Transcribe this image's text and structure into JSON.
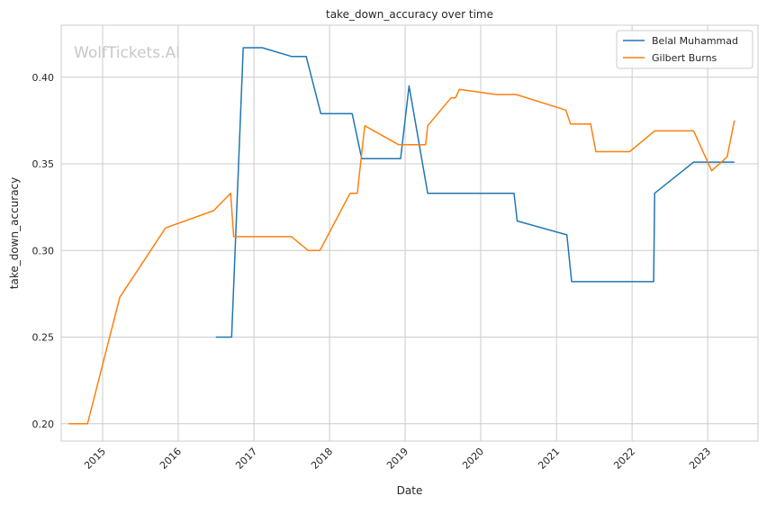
{
  "chart_data": {
    "type": "line",
    "title": "take_down_accuracy over time",
    "xlabel": "Date",
    "ylabel": "take_down_accuracy",
    "watermark": "WolfTickets.AI",
    "grid": true,
    "legend_position": "top-right",
    "x_type": "date",
    "xlim": [
      "2014-06-15",
      "2023-09-01"
    ],
    "ylim": [
      0.19,
      0.43
    ],
    "x_ticks": [
      "2015-01-01",
      "2016-01-01",
      "2017-01-01",
      "2018-01-01",
      "2019-01-01",
      "2020-01-01",
      "2021-01-01",
      "2022-01-01",
      "2023-01-01"
    ],
    "x_tick_labels": [
      "2015",
      "2016",
      "2017",
      "2018",
      "2019",
      "2020",
      "2021",
      "2022",
      "2023"
    ],
    "y_ticks": [
      0.2,
      0.25,
      0.3,
      0.35,
      0.4
    ],
    "y_tick_labels": [
      "0.20",
      "0.25",
      "0.30",
      "0.35",
      "0.40"
    ],
    "series": [
      {
        "name": "Belal Muhammad",
        "color": "#1f77b4",
        "points": [
          [
            "2016-07-01",
            0.25
          ],
          [
            "2016-09-15",
            0.25
          ],
          [
            "2016-11-10",
            0.417
          ],
          [
            "2017-02-10",
            0.417
          ],
          [
            "2017-07-01",
            0.412
          ],
          [
            "2017-09-10",
            0.412
          ],
          [
            "2017-11-20",
            0.379
          ],
          [
            "2018-04-20",
            0.379
          ],
          [
            "2018-06-05",
            0.353
          ],
          [
            "2018-12-10",
            0.353
          ],
          [
            "2019-01-20",
            0.395
          ],
          [
            "2019-04-20",
            0.333
          ],
          [
            "2020-06-10",
            0.333
          ],
          [
            "2020-06-25",
            0.317
          ],
          [
            "2021-02-20",
            0.309
          ],
          [
            "2021-03-15",
            0.282
          ],
          [
            "2022-04-15",
            0.282
          ],
          [
            "2022-04-20",
            0.333
          ],
          [
            "2022-10-25",
            0.351
          ],
          [
            "2023-05-10",
            0.351
          ]
        ]
      },
      {
        "name": "Gilbert Burns",
        "color": "#ff7f0e",
        "points": [
          [
            "2014-07-20",
            0.2
          ],
          [
            "2014-10-20",
            0.2
          ],
          [
            "2015-03-25",
            0.273
          ],
          [
            "2015-11-01",
            0.313
          ],
          [
            "2016-06-20",
            0.323
          ],
          [
            "2016-09-10",
            0.333
          ],
          [
            "2016-09-25",
            0.308
          ],
          [
            "2017-07-01",
            0.308
          ],
          [
            "2017-09-20",
            0.3
          ],
          [
            "2017-11-15",
            0.3
          ],
          [
            "2018-04-10",
            0.333
          ],
          [
            "2018-05-15",
            0.333
          ],
          [
            "2018-06-20",
            0.372
          ],
          [
            "2018-12-01",
            0.361
          ],
          [
            "2019-04-10",
            0.361
          ],
          [
            "2019-04-20",
            0.372
          ],
          [
            "2019-08-10",
            0.388
          ],
          [
            "2019-09-01",
            0.388
          ],
          [
            "2019-09-20",
            0.393
          ],
          [
            "2020-03-15",
            0.39
          ],
          [
            "2020-06-20",
            0.39
          ],
          [
            "2021-02-15",
            0.381
          ],
          [
            "2021-03-10",
            0.373
          ],
          [
            "2021-06-15",
            0.373
          ],
          [
            "2021-07-10",
            0.357
          ],
          [
            "2021-12-20",
            0.357
          ],
          [
            "2022-04-20",
            0.369
          ],
          [
            "2022-10-25",
            0.369
          ],
          [
            "2023-01-20",
            0.346
          ],
          [
            "2023-04-05",
            0.354
          ],
          [
            "2023-05-10",
            0.375
          ]
        ]
      }
    ]
  }
}
